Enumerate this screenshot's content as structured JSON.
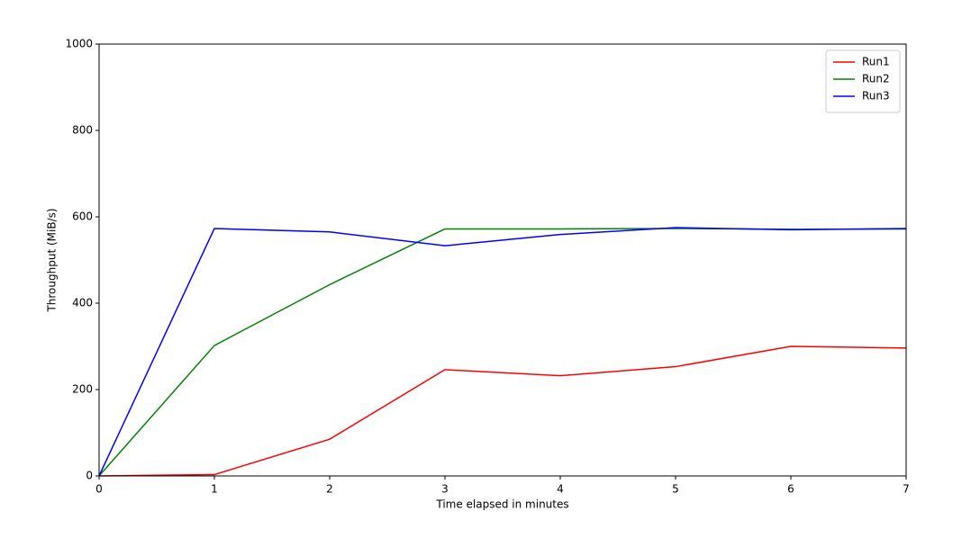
{
  "chart_data": {
    "type": "line",
    "xlabel": "Time elapsed in minutes",
    "ylabel": "Throughput (MiB/s)",
    "x": [
      0,
      1,
      2,
      3,
      4,
      5,
      6,
      7
    ],
    "series": [
      {
        "name": "Run1",
        "color": "#ff0000",
        "values": [
          0,
          3,
          85,
          246,
          232,
          253,
          300,
          296
        ]
      },
      {
        "name": "Run2",
        "color": "#008000",
        "values": [
          0,
          302,
          443,
          572,
          572,
          573,
          571,
          572
        ]
      },
      {
        "name": "Run3",
        "color": "#0000ff",
        "values": [
          0,
          573,
          565,
          533,
          559,
          575,
          570,
          573
        ]
      }
    ],
    "xlim": [
      0,
      7
    ],
    "xticks": [
      0,
      1,
      2,
      3,
      4,
      5,
      6,
      7
    ],
    "ylim": [
      0,
      1000
    ],
    "yticks": [
      0,
      200,
      400,
      600,
      800,
      1000
    ],
    "legend": "upper-right"
  }
}
